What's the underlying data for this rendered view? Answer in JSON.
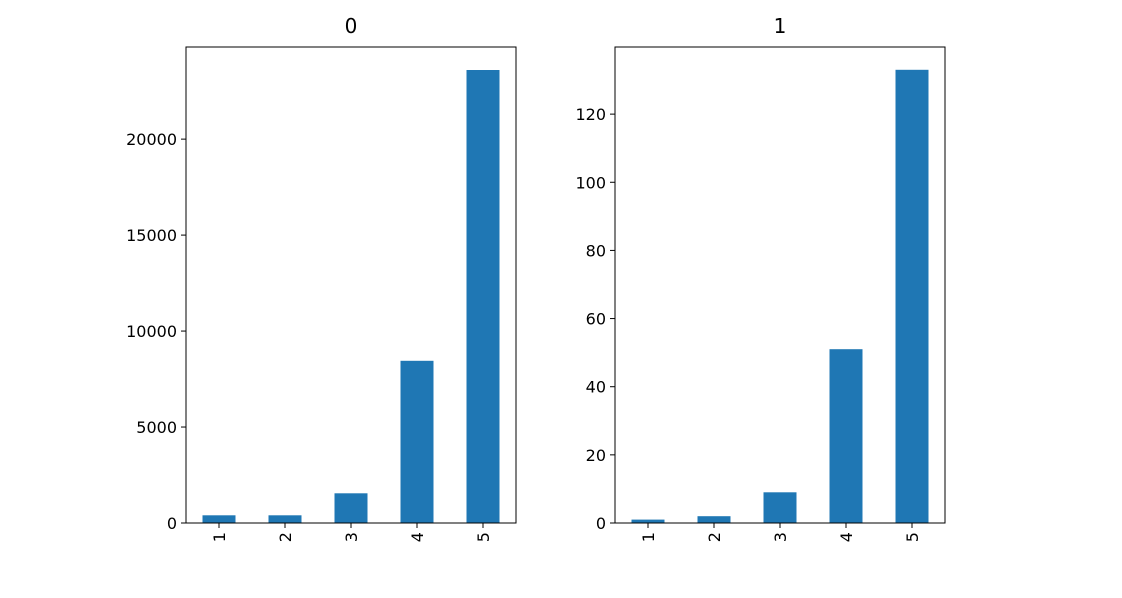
{
  "colors": {
    "bar": "#1f77b4",
    "axes": "#000000",
    "background": "#ffffff"
  },
  "chart_data": [
    {
      "type": "bar",
      "title": "0",
      "categories": [
        "1",
        "2",
        "3",
        "4",
        "5"
      ],
      "values": [
        400,
        400,
        1550,
        8450,
        23600
      ],
      "ylim": [
        0,
        24800
      ],
      "yticks": [
        0,
        5000,
        10000,
        15000,
        20000
      ],
      "xlabel": "",
      "ylabel": "",
      "grid": false,
      "legend": "none"
    },
    {
      "type": "bar",
      "title": "1",
      "categories": [
        "1",
        "2",
        "3",
        "4",
        "5"
      ],
      "values": [
        1,
        2,
        9,
        51,
        133
      ],
      "ylim": [
        0,
        139.7
      ],
      "yticks": [
        0,
        20,
        40,
        60,
        80,
        100,
        120
      ],
      "xlabel": "",
      "ylabel": "",
      "grid": false,
      "legend": "none"
    }
  ]
}
